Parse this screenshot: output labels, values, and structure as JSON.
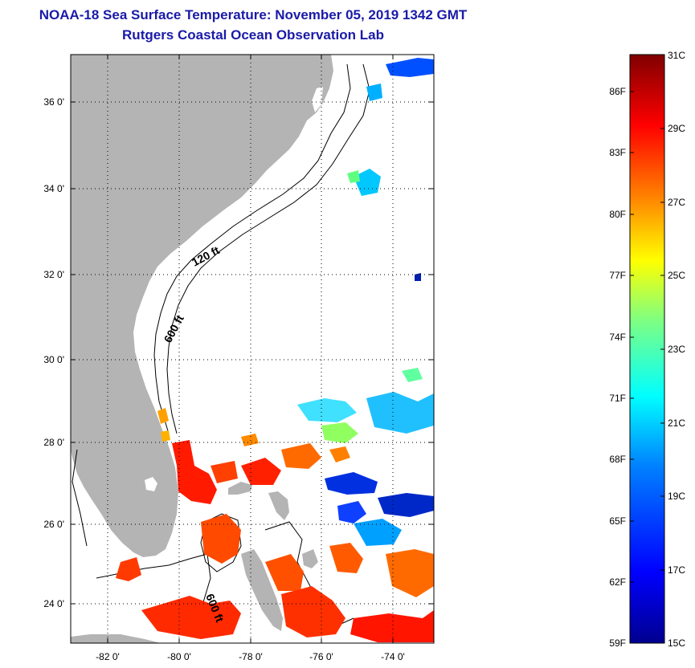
{
  "header": {
    "title": "NOAA-18 Sea Surface Temperature:  November 05, 2019 1342 GMT",
    "subtitle": "Rutgers Coastal Ocean Observation Lab"
  },
  "map": {
    "lat_labels": [
      "36 0'",
      "34 0'",
      "32 0'",
      "30 0'",
      "28 0'",
      "26 0'",
      "24 0'"
    ],
    "lon_labels": [
      "-82 0'",
      "-80 0'",
      "-78 0'",
      "-76 0'",
      "-74 0'"
    ],
    "isobaths": [
      {
        "label": "120 ft"
      },
      {
        "label": "600 ft"
      },
      {
        "label": "600 ft"
      }
    ]
  },
  "colorbar": {
    "celsius_labels": [
      "31C",
      "29C",
      "27C",
      "25C",
      "23C",
      "21C",
      "19C",
      "17C",
      "15C"
    ],
    "fahrenheit_labels": [
      "86F",
      "83F",
      "80F",
      "77F",
      "74F",
      "71F",
      "68F",
      "65F",
      "62F",
      "59F"
    ],
    "colors": [
      "#00008f",
      "#0000ff",
      "#0080ff",
      "#00ffff",
      "#80ff80",
      "#ffff00",
      "#ff8000",
      "#ff0000",
      "#800000"
    ]
  }
}
